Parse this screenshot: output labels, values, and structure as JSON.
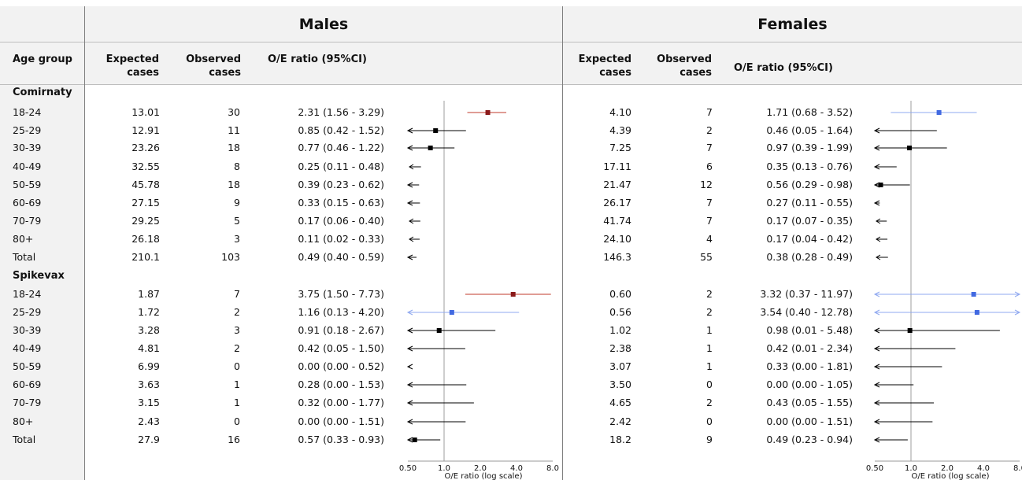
{
  "headers": {
    "males": "Males",
    "females": "Females",
    "age_group": "Age group",
    "expected_cases": [
      "Expected",
      "cases"
    ],
    "observed_cases": [
      "Observed",
      "cases"
    ],
    "oe_ratio": "O/E ratio (95%CI)"
  },
  "groups": [
    "Comirnaty",
    "Spikevax"
  ],
  "axis_label": "O/E ratio (log scale)",
  "colors": {
    "elevated": "#8b1a1a",
    "elevated_ci": "#c0392b",
    "female_highlight": "#4169e1",
    "female_highlight_ci": "#8fa8f0",
    "normal": "#000000",
    "reference_line": "#9e9e9e"
  },
  "chart_data": {
    "type": "forest",
    "x_scale": "log2",
    "xlim": [
      0.5,
      8.0
    ],
    "x_ticks": [
      "0.50",
      "1.0",
      "2.0",
      "4.0",
      "8.0"
    ],
    "x_tick_values": [
      0.5,
      1.0,
      2.0,
      4.0,
      8.0
    ],
    "reference": 1.0,
    "xlabel": "O/E ratio (log scale)",
    "panels": [
      {
        "name": "Males",
        "rows": [
          {
            "group": "Comirnaty",
            "age": "18-24",
            "expected": "13.01",
            "observed": "30",
            "ratio_text": "2.31 (1.56 - 3.29)",
            "oe": 2.31,
            "lo": 1.56,
            "hi": 3.29,
            "highlight": "elevated"
          },
          {
            "group": "Comirnaty",
            "age": "25-29",
            "expected": "12.91",
            "observed": "11",
            "ratio_text": "0.85 (0.42 - 1.52)",
            "oe": 0.85,
            "lo": 0.42,
            "hi": 1.52
          },
          {
            "group": "Comirnaty",
            "age": "30-39",
            "expected": "23.26",
            "observed": "18",
            "ratio_text": "0.77 (0.46 - 1.22)",
            "oe": 0.77,
            "lo": 0.46,
            "hi": 1.22
          },
          {
            "group": "Comirnaty",
            "age": "40-49",
            "expected": "32.55",
            "observed": "8",
            "ratio_text": "0.25 (0.11 - 0.48)",
            "oe": 0.25,
            "lo": 0.11,
            "hi": 0.48
          },
          {
            "group": "Comirnaty",
            "age": "50-59",
            "expected": "45.78",
            "observed": "18",
            "ratio_text": "0.39 (0.23 - 0.62)",
            "oe": 0.39,
            "lo": 0.23,
            "hi": 0.62
          },
          {
            "group": "Comirnaty",
            "age": "60-69",
            "expected": "27.15",
            "observed": "9",
            "ratio_text": "0.33 (0.15 - 0.63)",
            "oe": 0.33,
            "lo": 0.15,
            "hi": 0.63
          },
          {
            "group": "Comirnaty",
            "age": "70-79",
            "expected": "29.25",
            "observed": "5",
            "ratio_text": "0.17 (0.06 - 0.40)",
            "oe": 0.17,
            "lo": 0.06,
            "hi": 0.4
          },
          {
            "group": "Comirnaty",
            "age": "80+",
            "expected": "26.18",
            "observed": "3",
            "ratio_text": "0.11 (0.02 - 0.33)",
            "oe": 0.11,
            "lo": 0.02,
            "hi": 0.33
          },
          {
            "group": "Comirnaty",
            "age": "Total",
            "expected": "210.1",
            "observed": "103",
            "ratio_text": "0.49 (0.40 - 0.59)",
            "oe": 0.49,
            "lo": 0.4,
            "hi": 0.59
          },
          {
            "group": "Spikevax",
            "age": "18-24",
            "expected": "1.87",
            "observed": "7",
            "ratio_text": "3.75 (1.50 - 7.73)",
            "oe": 3.75,
            "lo": 1.5,
            "hi": 7.73,
            "highlight": "elevated"
          },
          {
            "group": "Spikevax",
            "age": "25-29",
            "expected": "1.72",
            "observed": "2",
            "ratio_text": "1.16 (0.13 - 4.20)",
            "oe": 1.16,
            "lo": 0.13,
            "hi": 4.2,
            "highlight": "blue"
          },
          {
            "group": "Spikevax",
            "age": "30-39",
            "expected": "3.28",
            "observed": "3",
            "ratio_text": "0.91 (0.18 - 2.67)",
            "oe": 0.91,
            "lo": 0.18,
            "hi": 2.67
          },
          {
            "group": "Spikevax",
            "age": "40-49",
            "expected": "4.81",
            "observed": "2",
            "ratio_text": "0.42 (0.05 - 1.50)",
            "oe": 0.42,
            "lo": 0.05,
            "hi": 1.5
          },
          {
            "group": "Spikevax",
            "age": "50-59",
            "expected": "6.99",
            "observed": "0",
            "ratio_text": "0.00 (0.00 - 0.52)",
            "oe": 0.0,
            "lo": 0.0,
            "hi": 0.52
          },
          {
            "group": "Spikevax",
            "age": "60-69",
            "expected": "3.63",
            "observed": "1",
            "ratio_text": "0.28 (0.00 - 1.53)",
            "oe": 0.28,
            "lo": 0.0,
            "hi": 1.53
          },
          {
            "group": "Spikevax",
            "age": "70-79",
            "expected": "3.15",
            "observed": "1",
            "ratio_text": "0.32 (0.00 - 1.77)",
            "oe": 0.32,
            "lo": 0.0,
            "hi": 1.77
          },
          {
            "group": "Spikevax",
            "age": "80+",
            "expected": "2.43",
            "observed": "0",
            "ratio_text": "0.00 (0.00 - 1.51)",
            "oe": 0.0,
            "lo": 0.0,
            "hi": 1.51
          },
          {
            "group": "Spikevax",
            "age": "Total",
            "expected": "27.9",
            "observed": "16",
            "ratio_text": "0.57 (0.33 - 0.93)",
            "oe": 0.57,
            "lo": 0.33,
            "hi": 0.93
          }
        ]
      },
      {
        "name": "Females",
        "rows": [
          {
            "group": "Comirnaty",
            "age": "18-24",
            "expected": "4.10",
            "observed": "7",
            "ratio_text": "1.71 (0.68 - 3.52)",
            "oe": 1.71,
            "lo": 0.68,
            "hi": 3.52,
            "highlight": "blue"
          },
          {
            "group": "Comirnaty",
            "age": "25-29",
            "expected": "4.39",
            "observed": "2",
            "ratio_text": "0.46 (0.05 - 1.64)",
            "oe": 0.46,
            "lo": 0.05,
            "hi": 1.64
          },
          {
            "group": "Comirnaty",
            "age": "30-39",
            "expected": "7.25",
            "observed": "7",
            "ratio_text": "0.97 (0.39 - 1.99)",
            "oe": 0.97,
            "lo": 0.39,
            "hi": 1.99
          },
          {
            "group": "Comirnaty",
            "age": "40-49",
            "expected": "17.11",
            "observed": "6",
            "ratio_text": "0.35 (0.13 - 0.76)",
            "oe": 0.35,
            "lo": 0.13,
            "hi": 0.76
          },
          {
            "group": "Comirnaty",
            "age": "50-59",
            "expected": "21.47",
            "observed": "12",
            "ratio_text": "0.56 (0.29 - 0.98)",
            "oe": 0.56,
            "lo": 0.29,
            "hi": 0.98
          },
          {
            "group": "Comirnaty",
            "age": "60-69",
            "expected": "26.17",
            "observed": "7",
            "ratio_text": "0.27 (0.11 - 0.55)",
            "oe": 0.27,
            "lo": 0.11,
            "hi": 0.55
          },
          {
            "group": "Comirnaty",
            "age": "70-79",
            "expected": "41.74",
            "observed": "7",
            "ratio_text": "0.17 (0.07 - 0.35)",
            "oe": 0.17,
            "lo": 0.07,
            "hi": 0.35
          },
          {
            "group": "Comirnaty",
            "age": "80+",
            "expected": "24.10",
            "observed": "4",
            "ratio_text": "0.17 (0.04 - 0.42)",
            "oe": 0.17,
            "lo": 0.04,
            "hi": 0.42
          },
          {
            "group": "Comirnaty",
            "age": "Total",
            "expected": "146.3",
            "observed": "55",
            "ratio_text": "0.38 (0.28 - 0.49)",
            "oe": 0.38,
            "lo": 0.28,
            "hi": 0.49
          },
          {
            "group": "Spikevax",
            "age": "18-24",
            "expected": "0.60",
            "observed": "2",
            "ratio_text": "3.32 (0.37 - 11.97)",
            "oe": 3.32,
            "lo": 0.37,
            "hi": 11.97,
            "highlight": "blue"
          },
          {
            "group": "Spikevax",
            "age": "25-29",
            "expected": "0.56",
            "observed": "2",
            "ratio_text": "3.54 (0.40 - 12.78)",
            "oe": 3.54,
            "lo": 0.4,
            "hi": 12.78,
            "highlight": "blue"
          },
          {
            "group": "Spikevax",
            "age": "30-39",
            "expected": "1.02",
            "observed": "1",
            "ratio_text": "0.98 (0.01 - 5.48)",
            "oe": 0.98,
            "lo": 0.01,
            "hi": 5.48
          },
          {
            "group": "Spikevax",
            "age": "40-49",
            "expected": "2.38",
            "observed": "1",
            "ratio_text": "0.42 (0.01 - 2.34)",
            "oe": 0.42,
            "lo": 0.01,
            "hi": 2.34
          },
          {
            "group": "Spikevax",
            "age": "50-59",
            "expected": "3.07",
            "observed": "1",
            "ratio_text": "0.33 (0.00 - 1.81)",
            "oe": 0.33,
            "lo": 0.0,
            "hi": 1.81
          },
          {
            "group": "Spikevax",
            "age": "60-69",
            "expected": "3.50",
            "observed": "0",
            "ratio_text": "0.00 (0.00 - 1.05)",
            "oe": 0.0,
            "lo": 0.0,
            "hi": 1.05
          },
          {
            "group": "Spikevax",
            "age": "70-79",
            "expected": "4.65",
            "observed": "2",
            "ratio_text": "0.43 (0.05 - 1.55)",
            "oe": 0.43,
            "lo": 0.05,
            "hi": 1.55
          },
          {
            "group": "Spikevax",
            "age": "80+",
            "expected": "2.42",
            "observed": "0",
            "ratio_text": "0.00 (0.00 - 1.51)",
            "oe": 0.0,
            "lo": 0.0,
            "hi": 1.51
          },
          {
            "group": "Spikevax",
            "age": "Total",
            "expected": "18.2",
            "observed": "9",
            "ratio_text": "0.49 (0.23 - 0.94)",
            "oe": 0.49,
            "lo": 0.23,
            "hi": 0.94
          }
        ]
      }
    ]
  }
}
